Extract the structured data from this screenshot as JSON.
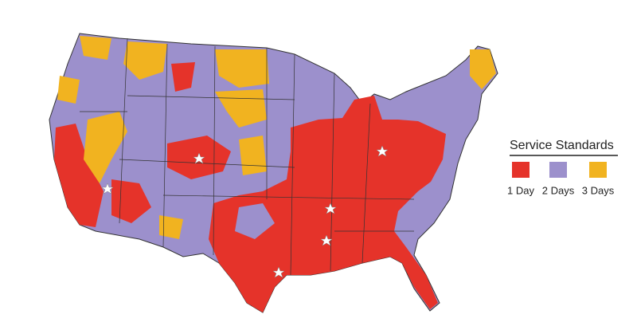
{
  "legend": {
    "title": "Service Standards",
    "items": [
      {
        "label": "1 Day",
        "color": "#e5332a"
      },
      {
        "label": "2 Days",
        "color": "#9c90cc"
      },
      {
        "label": "3 Days",
        "color": "#f1b320"
      }
    ]
  }
}
